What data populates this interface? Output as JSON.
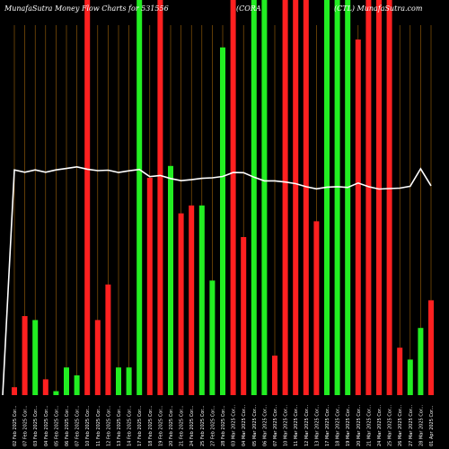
{
  "header": {
    "left": "MunafaSutra  Money  Flow  Charts for 531556",
    "middle": "(CORA",
    "right": "(CTL)   MunafaSutra.com"
  },
  "chart_data": {
    "type": "bar",
    "title": "MunafaSutra  Money  Flow  Charts for 531556",
    "categories": [
      "02 Feb 2025 Cor...",
      "07 Feb 2025 Cor...",
      "03 Feb 2025 Cor...",
      "04 Feb 2025 Cor...",
      "05 Feb 2025 Cor...",
      "06 Feb 2025 Cor...",
      "07 Feb 2025 Cor...",
      "10 Feb 2025 Cor...",
      "11 Feb 2025 Cor...",
      "12 Feb 2025 Cor...",
      "13 Feb 2025 Cor...",
      "14 Feb 2025 Cor...",
      "17 Feb 2025 Cor...",
      "18 Feb 2025 Cor...",
      "19 Feb 2025 Cor...",
      "20 Feb 2025 Cor...",
      "21 Feb 2025 Cor...",
      "24 Feb 2025 Cor...",
      "25 Feb 2025 Cor...",
      "27 Feb 2025 Cor...",
      "28 Feb 2025 Cor...",
      "03 Mar 2025 Cor...",
      "04 Mar 2025 Cor...",
      "05 Mar 2025 Cor...",
      "06 Mar 2025 Cor...",
      "07 Mar 2025 Cor...",
      "10 Mar 2025 Cor...",
      "11 Mar 2025 Cor...",
      "12 Mar 2025 Cor...",
      "13 Mar 2025 Cor...",
      "17 Mar 2025 Cor...",
      "18 Mar 2025 Cor...",
      "19 Mar 2025 Cor...",
      "20 Mar 2025 Cor...",
      "21 Mar 2025 Cor...",
      "24 Mar 2025 Cor...",
      "25 Mar 2025 Cor...",
      "26 Mar 2025 Cor...",
      "27 Mar 2025 Cor...",
      "28 Mar 2025 Cor...",
      "01 Apr 2025 Cor..."
    ],
    "flows": [
      "red",
      "red",
      "green",
      "red",
      "green",
      "green",
      "green",
      "red",
      "red",
      "red",
      "green",
      "green",
      "green",
      "red",
      "red",
      "green",
      "red",
      "red",
      "green",
      "green",
      "green",
      "red",
      "red",
      "green",
      "green",
      "red",
      "red",
      "red",
      "red",
      "red",
      "green",
      "green",
      "green",
      "red",
      "red",
      "red",
      "red",
      "red",
      "green",
      "green",
      "red"
    ],
    "values": [
      2,
      20,
      19,
      4,
      1,
      7,
      5,
      100,
      19,
      28,
      7,
      7,
      100,
      55,
      100,
      58,
      46,
      48,
      48,
      29,
      88,
      100,
      40,
      100,
      100,
      10,
      100,
      100,
      100,
      44,
      100,
      100,
      100,
      90,
      100,
      100,
      100,
      12,
      9,
      17,
      24
    ],
    "line_values": [
      58,
      57,
      58,
      57,
      58,
      58.6,
      59.3,
      58.3,
      57.7,
      57.9,
      56.9,
      57.6,
      58.2,
      55.1,
      55.6,
      54.3,
      53.4,
      53.8,
      54.4,
      54.6,
      55.2,
      56.9,
      56.8,
      54.9,
      53.3,
      53.3,
      52.8,
      52.1,
      50.8,
      49.9,
      50.6,
      50.8,
      50.5,
      52.4,
      50.8,
      49.8,
      50.0,
      50.2,
      51.0,
      58.5,
      51.2
    ],
    "ylim": [
      0,
      100
    ],
    "grid": true,
    "colors": {
      "background": "#000000",
      "inflow": "#22ee22",
      "outflow": "#ff2020",
      "gridline": "#a0640a",
      "line": "#ffffff"
    }
  }
}
